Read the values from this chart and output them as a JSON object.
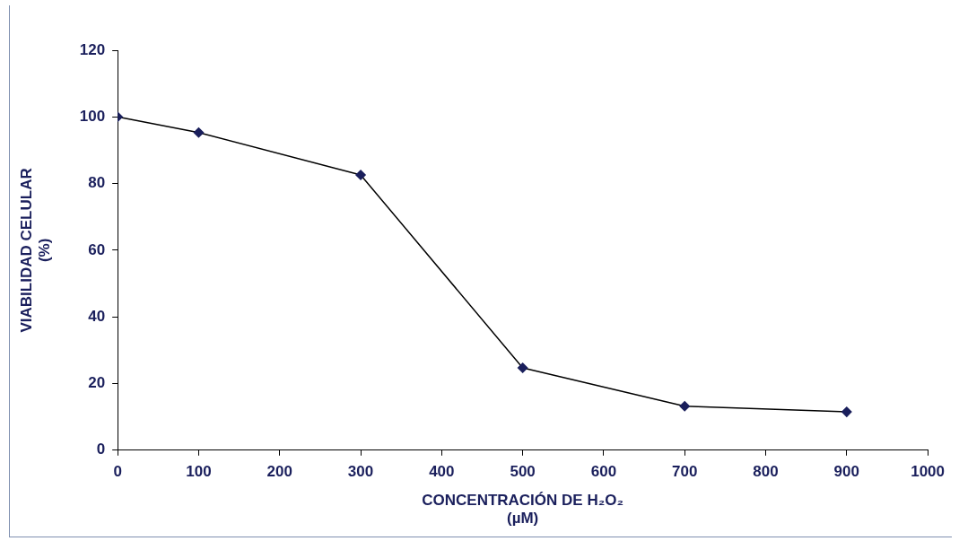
{
  "chart_data": {
    "type": "line",
    "xlabel": "CONCENTRACIÓN DE H₂O₂\n(µM)",
    "ylabel": "VIABILIDAD CELULAR\n(%)",
    "x": [
      0,
      100,
      300,
      500,
      700,
      900
    ],
    "series": [
      {
        "color": "#000000",
        "values": [
          100,
          95.3,
          82.6,
          24.7,
          13.2,
          11.5
        ]
      }
    ],
    "xlim": [
      0,
      1000
    ],
    "xticks": [
      0,
      100,
      200,
      300,
      400,
      500,
      600,
      700,
      800,
      900,
      1000
    ],
    "ylim": [
      0,
      120
    ],
    "yticks": [
      0,
      20,
      40,
      60,
      80,
      100,
      120
    ],
    "grid": false,
    "legend": false,
    "marker": "diamond",
    "line_style": "solid"
  }
}
